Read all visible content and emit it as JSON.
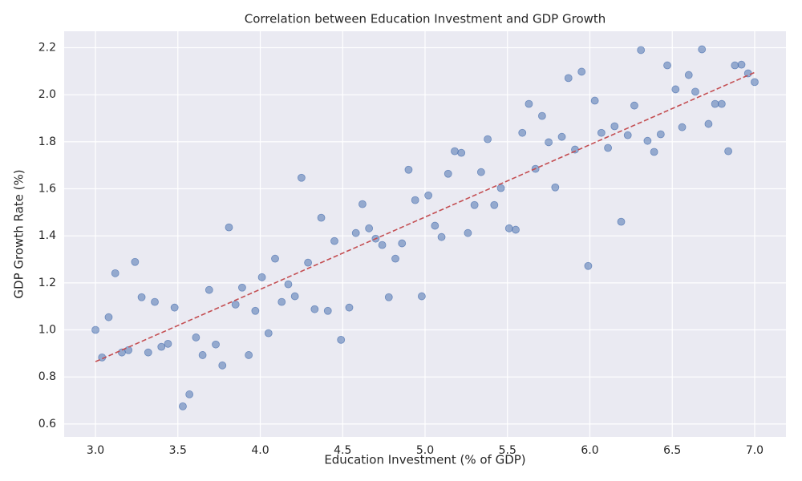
{
  "chart_data": {
    "type": "scatter",
    "title": "Correlation between Education Investment and GDP Growth",
    "x_label": "Education Investment (% of GDP)",
    "y_label": "GDP Growth Rate (%)",
    "x": [
      3.0,
      3.04,
      3.08,
      3.12,
      3.16,
      3.2,
      3.24,
      3.28,
      3.32,
      3.36,
      3.4,
      3.44,
      3.48,
      3.53,
      3.57,
      3.61,
      3.65,
      3.69,
      3.73,
      3.77,
      3.81,
      3.85,
      3.89,
      3.93,
      3.97,
      4.01,
      4.05,
      4.09,
      4.13,
      4.17,
      4.21,
      4.25,
      4.29,
      4.33,
      4.37,
      4.41,
      4.45,
      4.49,
      4.54,
      4.58,
      4.62,
      4.66,
      4.7,
      4.74,
      4.78,
      4.82,
      4.86,
      4.9,
      4.94,
      4.98,
      5.02,
      5.06,
      5.1,
      5.14,
      5.18,
      5.22,
      5.26,
      5.3,
      5.34,
      5.38,
      5.42,
      5.46,
      5.51,
      5.55,
      5.59,
      5.63,
      5.67,
      5.71,
      5.75,
      5.79,
      5.83,
      5.87,
      5.91,
      5.95,
      5.99,
      6.03,
      6.07,
      6.11,
      6.15,
      6.19,
      6.23,
      6.27,
      6.31,
      6.35,
      6.39,
      6.43,
      6.47,
      6.52,
      6.56,
      6.6,
      6.64,
      6.68,
      6.72,
      6.76,
      6.8,
      6.84,
      6.88,
      6.92,
      6.96,
      7.0
    ],
    "values": [
      1.0,
      0.883,
      1.054,
      1.241,
      0.904,
      0.914,
      1.289,
      1.139,
      0.904,
      1.119,
      0.928,
      0.941,
      1.095,
      0.675,
      0.726,
      0.968,
      0.893,
      1.17,
      0.938,
      0.849,
      1.436,
      1.108,
      1.18,
      0.893,
      1.081,
      1.224,
      0.986,
      1.303,
      1.119,
      1.194,
      1.143,
      1.647,
      1.286,
      1.088,
      1.477,
      1.081,
      1.378,
      0.958,
      1.095,
      1.412,
      1.535,
      1.432,
      1.388,
      1.361,
      1.139,
      1.303,
      1.368,
      1.681,
      1.552,
      1.143,
      1.572,
      1.443,
      1.395,
      1.664,
      1.76,
      1.753,
      1.412,
      1.531,
      1.671,
      1.811,
      1.531,
      1.603,
      1.432,
      1.426,
      1.838,
      1.961,
      1.685,
      1.91,
      1.798,
      1.606,
      1.821,
      2.071,
      1.767,
      2.098,
      1.272,
      1.975,
      1.838,
      1.774,
      1.866,
      1.46,
      1.828,
      1.954,
      2.19,
      1.804,
      1.757,
      1.832,
      2.125,
      2.023,
      1.862,
      2.084,
      2.013,
      2.193,
      1.876,
      1.961,
      1.961,
      1.76,
      2.125,
      2.128,
      2.091,
      2.054
    ],
    "color": "#4c72b0",
    "trend_line": {
      "x": [
        3.0,
        7.0
      ],
      "y": [
        0.865,
        2.095
      ],
      "color": "#c44e52",
      "dashed": true
    },
    "xlim": [
      2.81,
      7.19
    ],
    "ylim": [
      0.545,
      2.27
    ],
    "xticks": [
      {
        "value": 3,
        "label": "3.0"
      },
      3.5,
      {
        "value": 4,
        "label": "4.0"
      },
      4.5,
      {
        "value": 5,
        "label": "5.0"
      },
      5.5,
      {
        "value": 6,
        "label": "6.0"
      },
      6.5,
      {
        "value": 7,
        "label": "7.0"
      }
    ],
    "yticks": [
      0.6,
      0.8,
      {
        "value": 1,
        "label": "1.0"
      },
      1.2,
      1.4,
      1.6,
      1.8,
      {
        "value": 2,
        "label": "2.0"
      },
      2.2
    ],
    "grid": true
  }
}
